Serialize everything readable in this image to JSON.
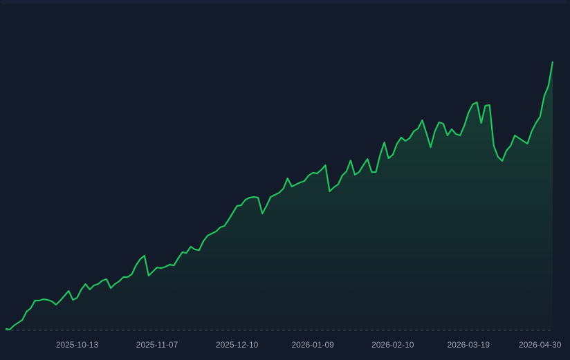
{
  "chart_data": {
    "type": "area",
    "categories": [
      null,
      null,
      null,
      null,
      null,
      null,
      null,
      null,
      null,
      null,
      null,
      null,
      null,
      null,
      null,
      null,
      null,
      "2025-10-13",
      null,
      null,
      null,
      null,
      null,
      null,
      null,
      null,
      null,
      null,
      null,
      null,
      null,
      null,
      null,
      null,
      null,
      null,
      "2025-11-07",
      null,
      null,
      null,
      null,
      null,
      null,
      null,
      null,
      null,
      null,
      null,
      null,
      null,
      null,
      null,
      null,
      null,
      null,
      "2025-12-10",
      null,
      null,
      null,
      null,
      null,
      null,
      null,
      null,
      null,
      null,
      null,
      null,
      null,
      null,
      null,
      null,
      null,
      "2026-01-09",
      null,
      null,
      null,
      null,
      null,
      null,
      null,
      null,
      null,
      null,
      null,
      null,
      null,
      null,
      null,
      null,
      null,
      null,
      "2026-02-10",
      null,
      null,
      null,
      null,
      null,
      null,
      null,
      null,
      null,
      null,
      null,
      null,
      null,
      null,
      null,
      null,
      null,
      "2026-03-19",
      null,
      null,
      null,
      null,
      null,
      null,
      null,
      null,
      null,
      null,
      null,
      null,
      null,
      null,
      null,
      null,
      "2026-04-30",
      null,
      null,
      null
    ],
    "values": [
      0.5,
      0.25,
      1.75,
      2.75,
      3.75,
      6.75,
      8,
      10.75,
      10.75,
      11.25,
      11,
      10.5,
      9.25,
      10.75,
      12.5,
      14.25,
      11,
      11.75,
      14.75,
      16.75,
      14.75,
      16.25,
      16.75,
      18,
      18.5,
      15.25,
      16.75,
      17.75,
      19.25,
      19.25,
      20.25,
      23.5,
      25.75,
      27,
      19.75,
      21.25,
      22.75,
      22.5,
      23,
      23.75,
      23.5,
      26,
      28.25,
      28,
      30.25,
      29.25,
      29,
      32.25,
      34.25,
      35,
      35.75,
      37.25,
      37.75,
      40,
      42.5,
      45,
      45.25,
      47.25,
      48,
      48.25,
      48,
      42.25,
      45,
      48.25,
      49,
      49.75,
      51.25,
      55,
      52,
      52.75,
      53.5,
      54,
      56,
      57,
      56.75,
      58,
      59.75,
      50.25,
      51.75,
      52.75,
      56,
      57.5,
      61.5,
      56.25,
      57.25,
      59.75,
      62,
      57.25,
      57.25,
      63.5,
      68,
      62.25,
      63.5,
      67.5,
      69.75,
      68.5,
      69.5,
      72,
      73,
      76,
      71.25,
      66.25,
      72,
      75.25,
      74.75,
      70.5,
      72.75,
      71,
      70.5,
      74,
      78.75,
      81.75,
      82.5,
      75,
      81.25,
      81.5,
      66.75,
      62.75,
      61.25,
      65,
      66.75,
      70.5,
      69.5,
      68.5,
      67.5,
      72,
      75,
      77.25,
      84.75,
      88.5,
      97.25
    ],
    "color": "#22c55e",
    "ylim": [
      0,
      100
    ]
  }
}
